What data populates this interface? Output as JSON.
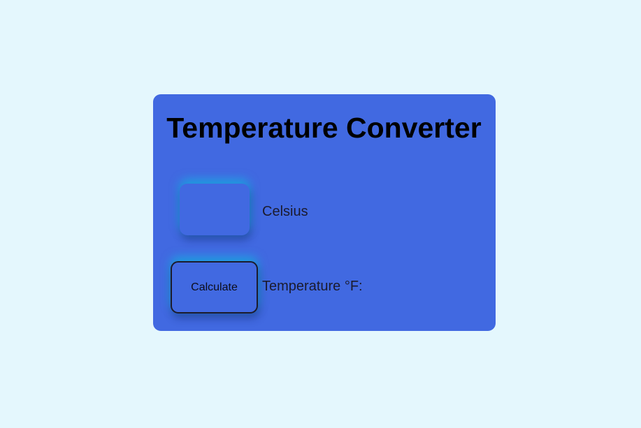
{
  "converter": {
    "title": "Temperature Converter",
    "celsius_value": "",
    "celsius_label": "Celsius",
    "calculate_label": "Calculate",
    "result_label": "Temperature °F:"
  },
  "colors": {
    "page_background": "#e4f7fd",
    "card_background": "#4169e1",
    "glow": "#00d2e6"
  }
}
